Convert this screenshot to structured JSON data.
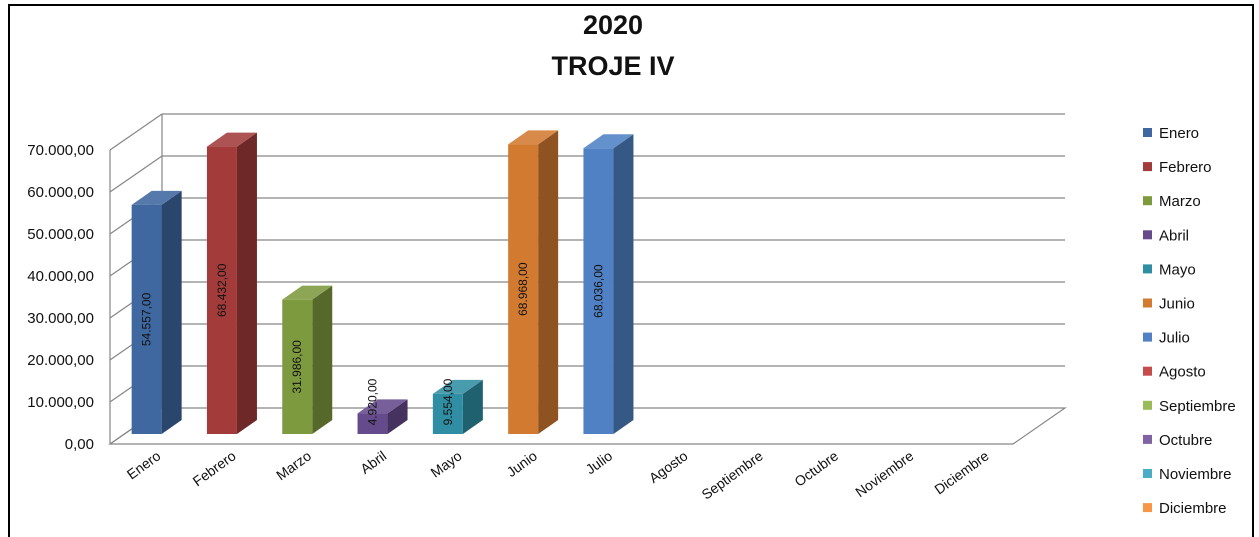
{
  "chart_data": {
    "type": "bar",
    "title_lines": [
      "2020",
      "TROJE IV"
    ],
    "categories": [
      "Enero",
      "Febrero",
      "Marzo",
      "Abril",
      "Mayo",
      "Junio",
      "Julio",
      "Agosto",
      "Septiembre",
      "Octubre",
      "Noviembre",
      "Diciembre"
    ],
    "values": [
      54557,
      68432,
      31986,
      4920,
      9554,
      68968,
      68036,
      null,
      null,
      null,
      null,
      null
    ],
    "value_labels": [
      "54.557,00",
      "68.432,00",
      "31.986,00",
      "4.920,00",
      "9.554,00",
      "68.968,00",
      "68.036,00",
      "",
      "",
      "",
      "",
      ""
    ],
    "y_ticks": [
      0,
      10000,
      20000,
      30000,
      40000,
      50000,
      60000,
      70000
    ],
    "y_tick_labels": [
      "0,00",
      "10.000,00",
      "20.000,00",
      "30.000,00",
      "40.000,00",
      "50.000,00",
      "60.000,00",
      "70.000,00"
    ],
    "ylim": [
      0,
      70000
    ],
    "grid": true,
    "style": "3d-column",
    "legend_position": "right",
    "legend": [
      {
        "label": "Enero",
        "color": "#3f67a0"
      },
      {
        "label": "Febrero",
        "color": "#a33b3b"
      },
      {
        "label": "Marzo",
        "color": "#7e9a3f"
      },
      {
        "label": "Abril",
        "color": "#654a8c"
      },
      {
        "label": "Mayo",
        "color": "#2f8ea3"
      },
      {
        "label": "Junio",
        "color": "#d27a30"
      },
      {
        "label": "Julio",
        "color": "#4f81c4"
      },
      {
        "label": "Agosto",
        "color": "#c64b4b"
      },
      {
        "label": "Septiembre",
        "color": "#9bbb59"
      },
      {
        "label": "Octubre",
        "color": "#8064a2"
      },
      {
        "label": "Noviembre",
        "color": "#4bacc6"
      },
      {
        "label": "Diciembre",
        "color": "#f79646"
      }
    ]
  }
}
